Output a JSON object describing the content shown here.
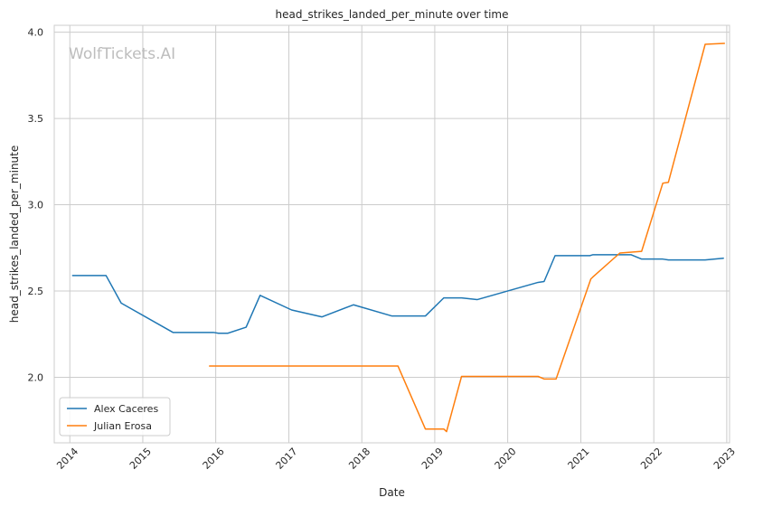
{
  "chart_data": {
    "type": "line",
    "title": "head_strikes_landed_per_minute over time",
    "xlabel": "Date",
    "ylabel": "head_strikes_landed_per_minute",
    "watermark": "WolfTickets.AI",
    "x_ticks": [
      "2014",
      "2015",
      "2016",
      "2017",
      "2018",
      "2019",
      "2020",
      "2021",
      "2022",
      "2023"
    ],
    "y_ticks": [
      "2.0",
      "2.5",
      "3.0",
      "3.5",
      "4.0"
    ],
    "xlim": [
      "2013-10-15",
      "2023-01-15"
    ],
    "ylim": [
      1.62,
      4.04
    ],
    "grid": true,
    "legend_position": "lower-left",
    "series": [
      {
        "name": "Alex Caceres",
        "color": "#1f77b4",
        "points": [
          [
            "2014-01-15",
            2.59
          ],
          [
            "2014-07-01",
            2.59
          ],
          [
            "2014-09-15",
            2.43
          ],
          [
            "2015-06-01",
            2.26
          ],
          [
            "2015-12-20",
            2.26
          ],
          [
            "2016-01-15",
            2.255
          ],
          [
            "2016-03-01",
            2.255
          ],
          [
            "2016-06-01",
            2.29
          ],
          [
            "2016-08-10",
            2.475
          ],
          [
            "2017-01-15",
            2.39
          ],
          [
            "2017-06-15",
            2.35
          ],
          [
            "2017-11-20",
            2.42
          ],
          [
            "2018-06-01",
            2.355
          ],
          [
            "2018-11-15",
            2.355
          ],
          [
            "2019-02-15",
            2.46
          ],
          [
            "2019-05-15",
            2.46
          ],
          [
            "2019-08-01",
            2.45
          ],
          [
            "2020-06-01",
            2.55
          ],
          [
            "2020-07-01",
            2.555
          ],
          [
            "2020-08-25",
            2.705
          ],
          [
            "2021-02-15",
            2.705
          ],
          [
            "2021-03-01",
            2.71
          ],
          [
            "2021-09-10",
            2.71
          ],
          [
            "2021-11-01",
            2.685
          ],
          [
            "2022-02-15",
            2.685
          ],
          [
            "2022-03-15",
            2.68
          ],
          [
            "2022-09-15",
            2.68
          ],
          [
            "2022-12-15",
            2.69
          ]
        ]
      },
      {
        "name": "Julian Erosa",
        "color": "#ff7f0e",
        "points": [
          [
            "2015-12-01",
            2.065
          ],
          [
            "2018-07-01",
            2.065
          ],
          [
            "2018-11-15",
            1.7
          ],
          [
            "2019-02-15",
            1.7
          ],
          [
            "2019-03-01",
            1.685
          ],
          [
            "2019-05-15",
            2.005
          ],
          [
            "2020-06-01",
            2.005
          ],
          [
            "2020-07-01",
            1.99
          ],
          [
            "2020-08-30",
            1.99
          ],
          [
            "2021-02-20",
            2.57
          ],
          [
            "2021-03-01",
            2.58
          ],
          [
            "2021-07-15",
            2.72
          ],
          [
            "2021-11-01",
            2.73
          ],
          [
            "2022-02-15",
            3.125
          ],
          [
            "2022-03-15",
            3.13
          ],
          [
            "2022-09-15",
            3.93
          ],
          [
            "2022-12-20",
            3.935
          ]
        ]
      }
    ]
  }
}
